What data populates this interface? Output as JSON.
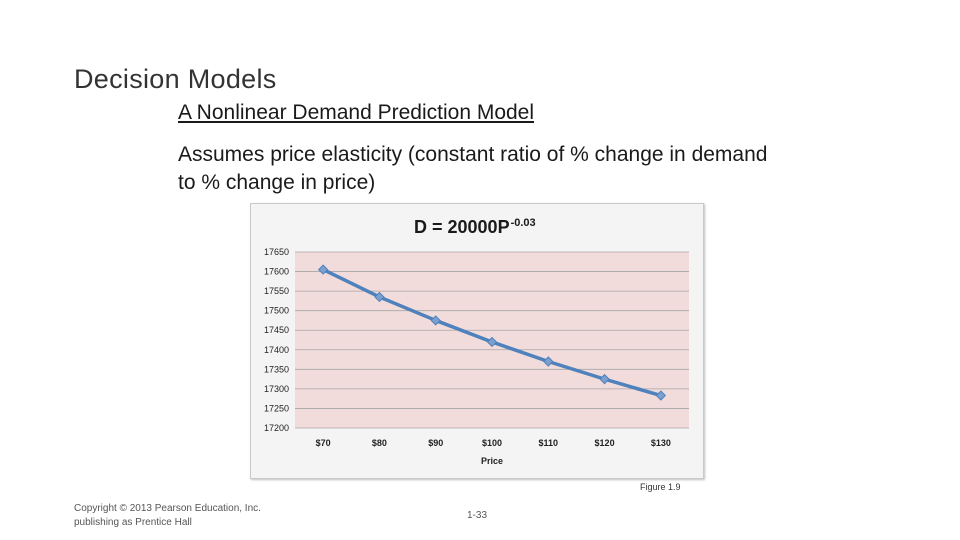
{
  "slide": {
    "heading": "Decision Models",
    "subtitle": "A Nonlinear Demand Prediction Model",
    "description": "Assumes price elasticity (constant ratio of % change in demand to % change in price)",
    "figure_caption": "Figure 1.9",
    "copyright_line1": "Copyright © 2013 Pearson Education, Inc.",
    "copyright_line2": "publishing as Prentice Hall",
    "slide_number": "1-33"
  },
  "colors": {
    "plot_background": "#f2dcdb",
    "series_line": "#4f81bd",
    "marker": "#7ba0d0",
    "gridline": "#a6a6a6"
  },
  "chart_data": {
    "type": "line",
    "title": "D = 20000P",
    "title_superscript": "-0.03",
    "xlabel": "Price",
    "ylabel": "",
    "categories": [
      "$70",
      "$80",
      "$90",
      "$100",
      "$110",
      "$120",
      "$130"
    ],
    "series": [
      {
        "values": [
          17605,
          17535,
          17475,
          17420,
          17370,
          17325,
          17283
        ]
      }
    ],
    "ylim": [
      17200,
      17650
    ],
    "yticks": [
      17200,
      17250,
      17300,
      17350,
      17400,
      17450,
      17500,
      17550,
      17600,
      17650
    ],
    "grid": true,
    "legend": "none",
    "marker": "diamond"
  }
}
